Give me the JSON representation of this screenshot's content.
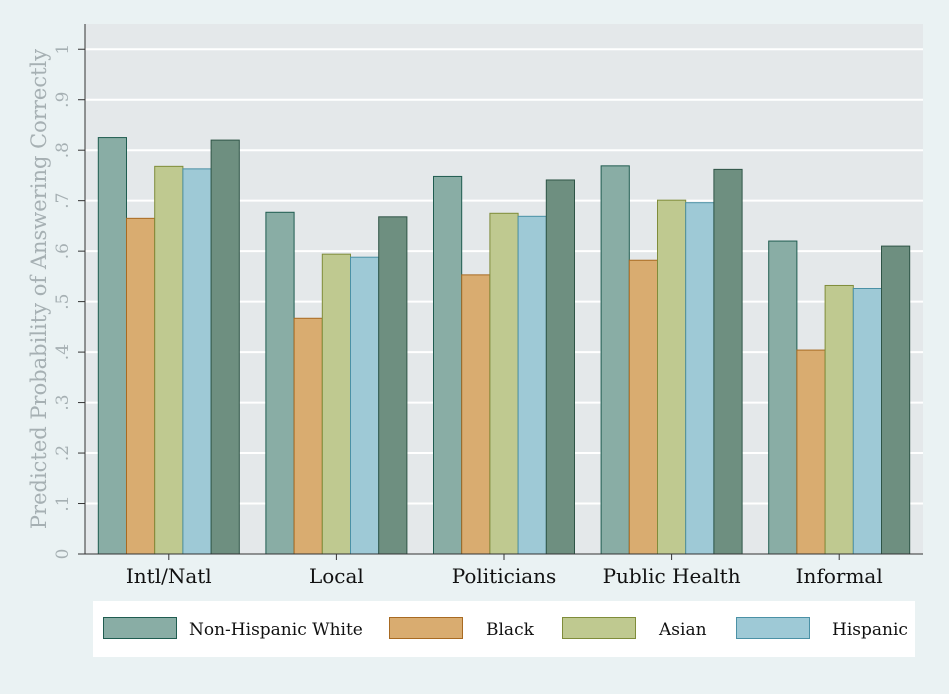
{
  "chart_data": {
    "type": "bar",
    "categories": [
      "Intl/Natl",
      "Local",
      "Politicians",
      "Public Health",
      "Informal"
    ],
    "ylabel": "Predicted Probability of Answering Correctly",
    "xlabel": "",
    "ylim": [
      0,
      1
    ],
    "yticks": [
      0,
      0.1,
      0.2,
      0.3,
      0.4,
      0.5,
      0.6,
      0.7,
      0.8,
      0.9,
      1
    ],
    "ytick_labels": [
      "0",
      ".1",
      ".2",
      ".3",
      ".4",
      ".5",
      ".6",
      ".7",
      ".8",
      ".9",
      "1"
    ],
    "grid": true,
    "legend_position": "bottom",
    "series": [
      {
        "name": "Non-Hispanic White",
        "values": [
          0.825,
          0.677,
          0.748,
          0.769,
          0.62
        ],
        "color": "#89ada5",
        "stroke": "#1f5c50"
      },
      {
        "name": "Black",
        "values": [
          0.665,
          0.467,
          0.553,
          0.582,
          0.404
        ],
        "color": "#d9ac70",
        "stroke": "#a86a22"
      },
      {
        "name": "Asian",
        "values": [
          0.768,
          0.594,
          0.675,
          0.701,
          0.532
        ],
        "color": "#bfc990",
        "stroke": "#7f8c3a"
      },
      {
        "name": "Hispanic",
        "values": [
          0.763,
          0.588,
          0.669,
          0.696,
          0.526
        ],
        "color": "#9ec9d6",
        "stroke": "#4b91a6"
      },
      {
        "name": "",
        "values": [
          0.82,
          0.668,
          0.741,
          0.762,
          0.61
        ],
        "color": "#6e8f80",
        "stroke": "#2e5446"
      }
    ]
  }
}
